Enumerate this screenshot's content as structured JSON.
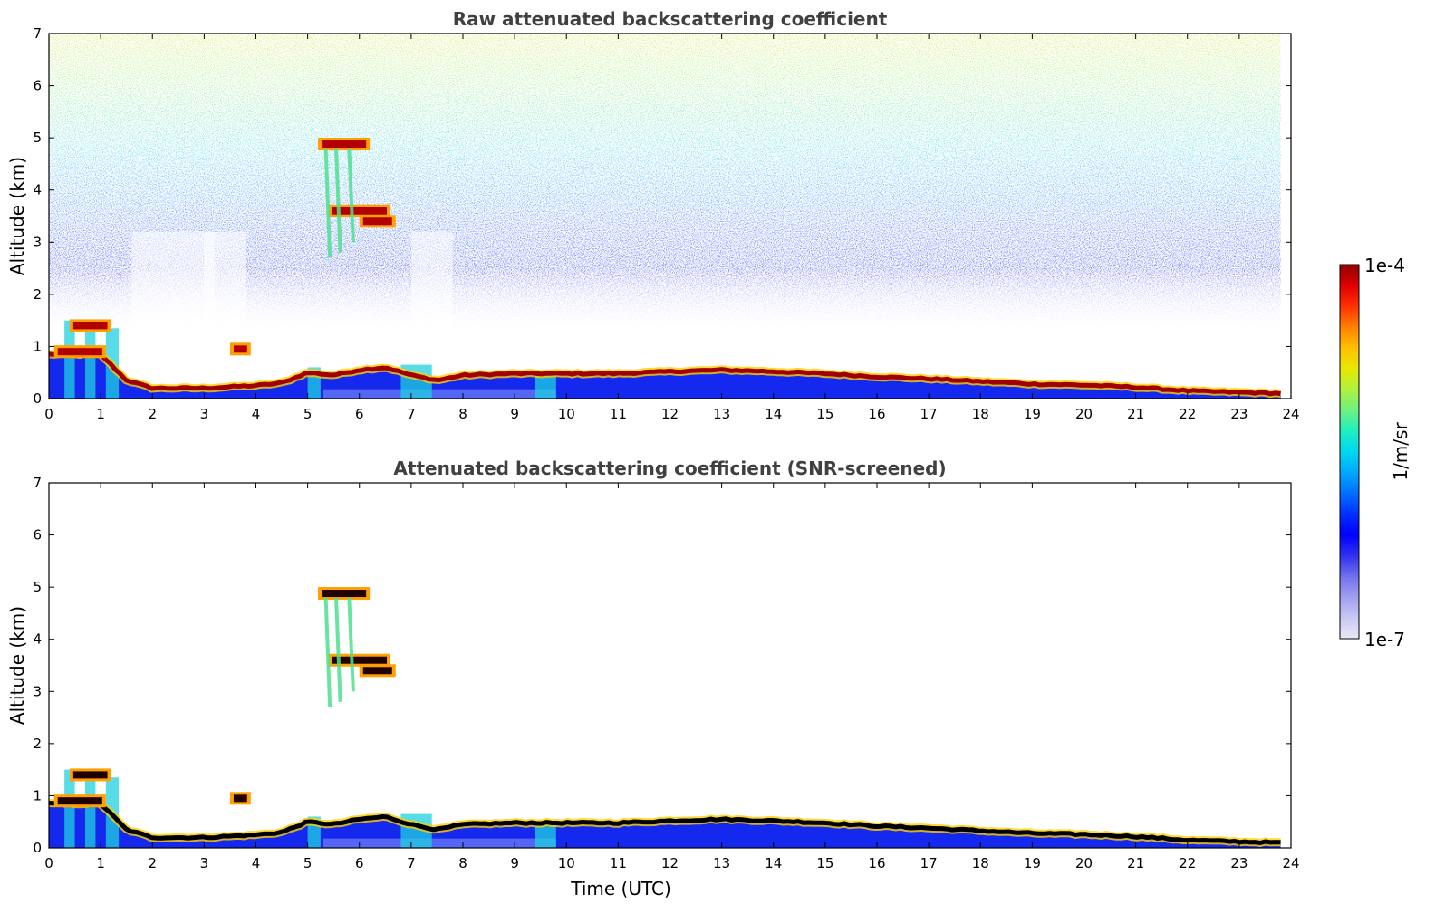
{
  "chart_data": [
    {
      "type": "heatmap",
      "title": "Raw attenuated backscattering coefficient",
      "xlabel": "",
      "ylabel": "Altitude (km)",
      "xlim": [
        0,
        24
      ],
      "ylim": [
        0,
        7
      ],
      "xticks": [
        "0",
        "1",
        "2",
        "3",
        "4",
        "5",
        "6",
        "7",
        "8",
        "9",
        "10",
        "11",
        "12",
        "13",
        "14",
        "15",
        "16",
        "17",
        "18",
        "19",
        "20",
        "21",
        "22",
        "23",
        "24"
      ],
      "yticks": [
        "0",
        "1",
        "2",
        "3",
        "4",
        "5",
        "6",
        "7"
      ],
      "colorscale": "log",
      "value_range": [
        1e-07,
        0.0001
      ],
      "noise_above_layer": true,
      "features": {
        "boundary_layer_top_km": {
          "x": [
            0,
            1,
            1.5,
            2,
            3,
            4,
            4.5,
            5,
            5.5,
            6,
            6.5,
            7,
            7.5,
            8,
            9,
            10,
            11,
            12,
            13,
            14,
            15,
            16,
            17,
            18,
            19,
            20,
            21,
            22,
            23,
            23.8
          ],
          "y": [
            0.85,
            0.85,
            0.35,
            0.2,
            0.2,
            0.25,
            0.3,
            0.5,
            0.45,
            0.55,
            0.6,
            0.45,
            0.35,
            0.45,
            0.48,
            0.48,
            0.48,
            0.52,
            0.55,
            0.52,
            0.48,
            0.42,
            0.38,
            0.33,
            0.28,
            0.26,
            0.22,
            0.15,
            0.12,
            0.1
          ]
        },
        "cloud_layers": [
          {
            "t_start": 5.2,
            "t_end": 6.2,
            "alt_km": 4.88
          },
          {
            "t_start": 5.4,
            "t_end": 6.6,
            "alt_km": 3.6
          },
          {
            "t_start": 6.0,
            "t_end": 6.7,
            "alt_km": 3.4
          },
          {
            "t_start": 0.1,
            "t_end": 1.1,
            "alt_km": 0.9
          },
          {
            "t_start": 0.4,
            "t_end": 1.2,
            "alt_km": 1.4
          },
          {
            "t_start": 3.5,
            "t_end": 3.9,
            "alt_km": 0.95
          }
        ]
      }
    },
    {
      "type": "heatmap",
      "title": "Attenuated backscattering coefficient (SNR-screened)",
      "xlabel": "Time (UTC)",
      "ylabel": "Altitude (km)",
      "xlim": [
        0,
        24
      ],
      "ylim": [
        0,
        7
      ],
      "xticks": [
        "0",
        "1",
        "2",
        "3",
        "4",
        "5",
        "6",
        "7",
        "8",
        "9",
        "10",
        "11",
        "12",
        "13",
        "14",
        "15",
        "16",
        "17",
        "18",
        "19",
        "20",
        "21",
        "22",
        "23",
        "24"
      ],
      "yticks": [
        "0",
        "1",
        "2",
        "3",
        "4",
        "5",
        "6",
        "7"
      ],
      "colorscale": "log",
      "value_range": [
        1e-07,
        0.0001
      ],
      "noise_above_layer": false,
      "features": {
        "boundary_layer_top_km": {
          "x": [
            0,
            1,
            1.5,
            2,
            3,
            4,
            4.5,
            5,
            5.5,
            6,
            6.5,
            7,
            7.5,
            8,
            9,
            10,
            11,
            12,
            13,
            14,
            15,
            16,
            17,
            18,
            19,
            20,
            21,
            22,
            23,
            23.8
          ],
          "y": [
            0.85,
            0.85,
            0.35,
            0.2,
            0.2,
            0.25,
            0.3,
            0.5,
            0.45,
            0.55,
            0.6,
            0.45,
            0.35,
            0.45,
            0.48,
            0.48,
            0.48,
            0.52,
            0.55,
            0.52,
            0.48,
            0.42,
            0.38,
            0.33,
            0.28,
            0.26,
            0.22,
            0.15,
            0.12,
            0.1
          ]
        },
        "cloud_layers": [
          {
            "t_start": 5.2,
            "t_end": 6.2,
            "alt_km": 4.88
          },
          {
            "t_start": 5.4,
            "t_end": 6.6,
            "alt_km": 3.6
          },
          {
            "t_start": 6.0,
            "t_end": 6.7,
            "alt_km": 3.4
          },
          {
            "t_start": 0.1,
            "t_end": 1.1,
            "alt_km": 0.9
          },
          {
            "t_start": 0.4,
            "t_end": 1.2,
            "alt_km": 1.4
          },
          {
            "t_start": 3.5,
            "t_end": 3.9,
            "alt_km": 0.95
          }
        ]
      }
    }
  ],
  "colorbar": {
    "label": "1/m/sr",
    "max_label": "1e-4",
    "min_label": "1e-7",
    "colors": [
      "#e8e8f8",
      "#c8c8f4",
      "#a0a0f0",
      "#7070ee",
      "#3030f0",
      "#0000ff",
      "#0030ff",
      "#0070ff",
      "#00a8ff",
      "#00d8ee",
      "#20f0c0",
      "#70f080",
      "#b0f040",
      "#e8e800",
      "#ffc000",
      "#ff8000",
      "#ff3000",
      "#e00000",
      "#900000"
    ]
  }
}
